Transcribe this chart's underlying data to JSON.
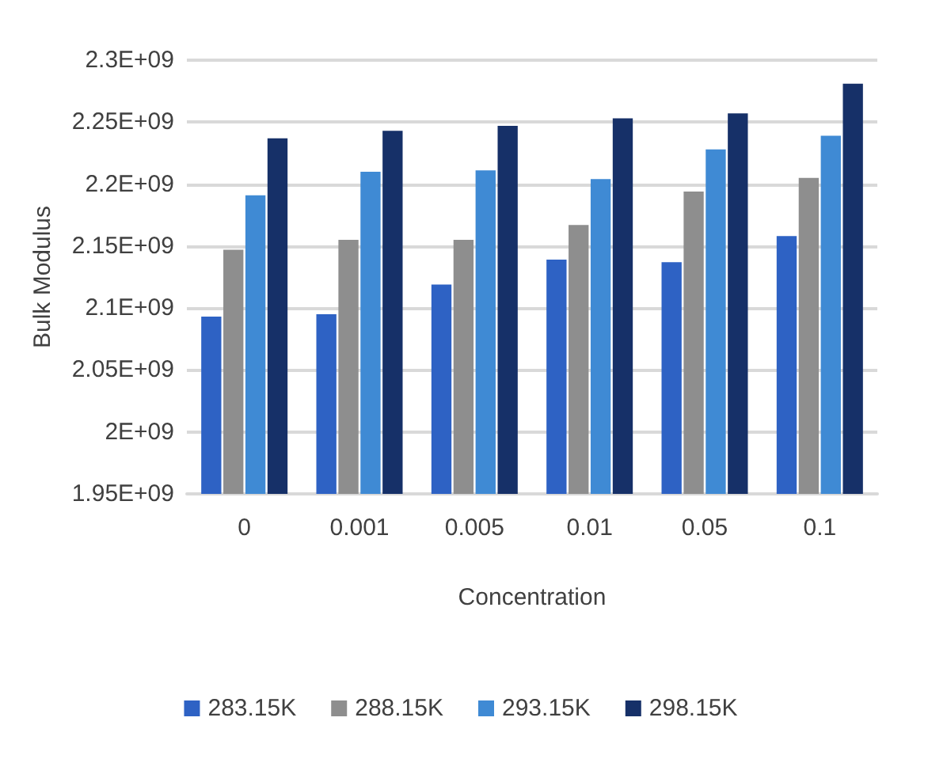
{
  "chart_data": {
    "type": "bar",
    "xlabel": "Concentration",
    "ylabel": "Bulk Modulus",
    "categories": [
      "0",
      "0.001",
      "0.005",
      "0.01",
      "0.05",
      "0.1"
    ],
    "series": [
      {
        "name": "283.15K",
        "color": "#2e62c4",
        "values": [
          2093000000,
          2095000000,
          2119000000,
          2139000000,
          2137000000,
          2158000000
        ]
      },
      {
        "name": "288.15K",
        "color": "#8e8e8e",
        "values": [
          2147000000,
          2155000000,
          2155000000,
          2167000000,
          2194000000,
          2205000000
        ]
      },
      {
        "name": "293.15K",
        "color": "#3f8ad4",
        "values": [
          2191000000,
          2210000000,
          2211000000,
          2204000000,
          2228000000,
          2239000000
        ]
      },
      {
        "name": "298.15K",
        "color": "#163068",
        "values": [
          2237000000,
          2243000000,
          2247000000,
          2253000000,
          2257000000,
          2281000000
        ]
      }
    ],
    "ylim": [
      1950000000,
      2300000000
    ],
    "yticks": [
      {
        "value": 1950000000,
        "label": "1.95E+09"
      },
      {
        "value": 2000000000,
        "label": "2E+09"
      },
      {
        "value": 2050000000,
        "label": "2.05E+09"
      },
      {
        "value": 2100000000,
        "label": "2.1E+09"
      },
      {
        "value": 2150000000,
        "label": "2.15E+09"
      },
      {
        "value": 2200000000,
        "label": "2.2E+09"
      },
      {
        "value": 2250000000,
        "label": "2.25E+09"
      },
      {
        "value": 2300000000,
        "label": "2.3E+09"
      }
    ],
    "grid": "y",
    "legend": "bottom"
  }
}
